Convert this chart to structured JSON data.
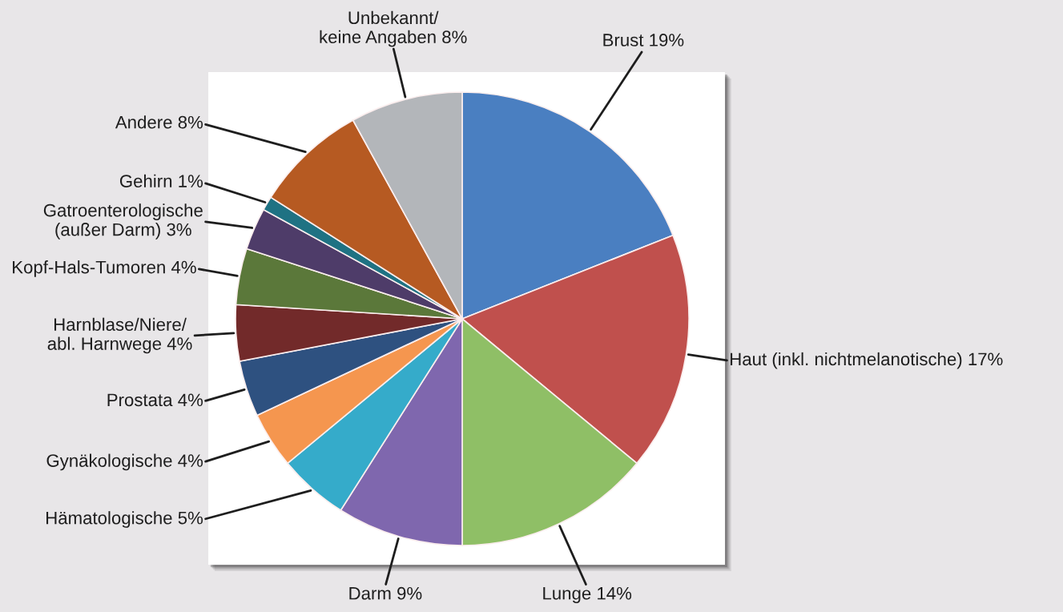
{
  "chart_data": {
    "type": "pie",
    "categories": [
      "Brust",
      "Haut (inkl. nichtmelanotische)",
      "Lunge",
      "Darm",
      "Hämatologische",
      "Gynäkologische",
      "Prostata",
      "Harnblase/Niere/\nabl. Harnwege",
      "Kopf-Hals-Tumoren",
      "Gatroenterologische\n(außer Darm)",
      "Gehirn",
      "Andere",
      "Unbekannt/\nkeine Angaben"
    ],
    "values": [
      19,
      17,
      14,
      9,
      5,
      4,
      4,
      4,
      4,
      3,
      1,
      8,
      8
    ],
    "value_labels": [
      "19%",
      "17%",
      "14%",
      "9%",
      "5%",
      "4%",
      "4%",
      "4%",
      "4%",
      "3%",
      "1%",
      "8%",
      "8%"
    ],
    "colors": [
      "#4a7fc1",
      "#c0504d",
      "#8fbf66",
      "#7f67ae",
      "#35abca",
      "#f5964f",
      "#2e5180",
      "#722a2a",
      "#5b783a",
      "#4e3c69",
      "#1f7283",
      "#b65a22",
      "#b3b6ba"
    ]
  }
}
